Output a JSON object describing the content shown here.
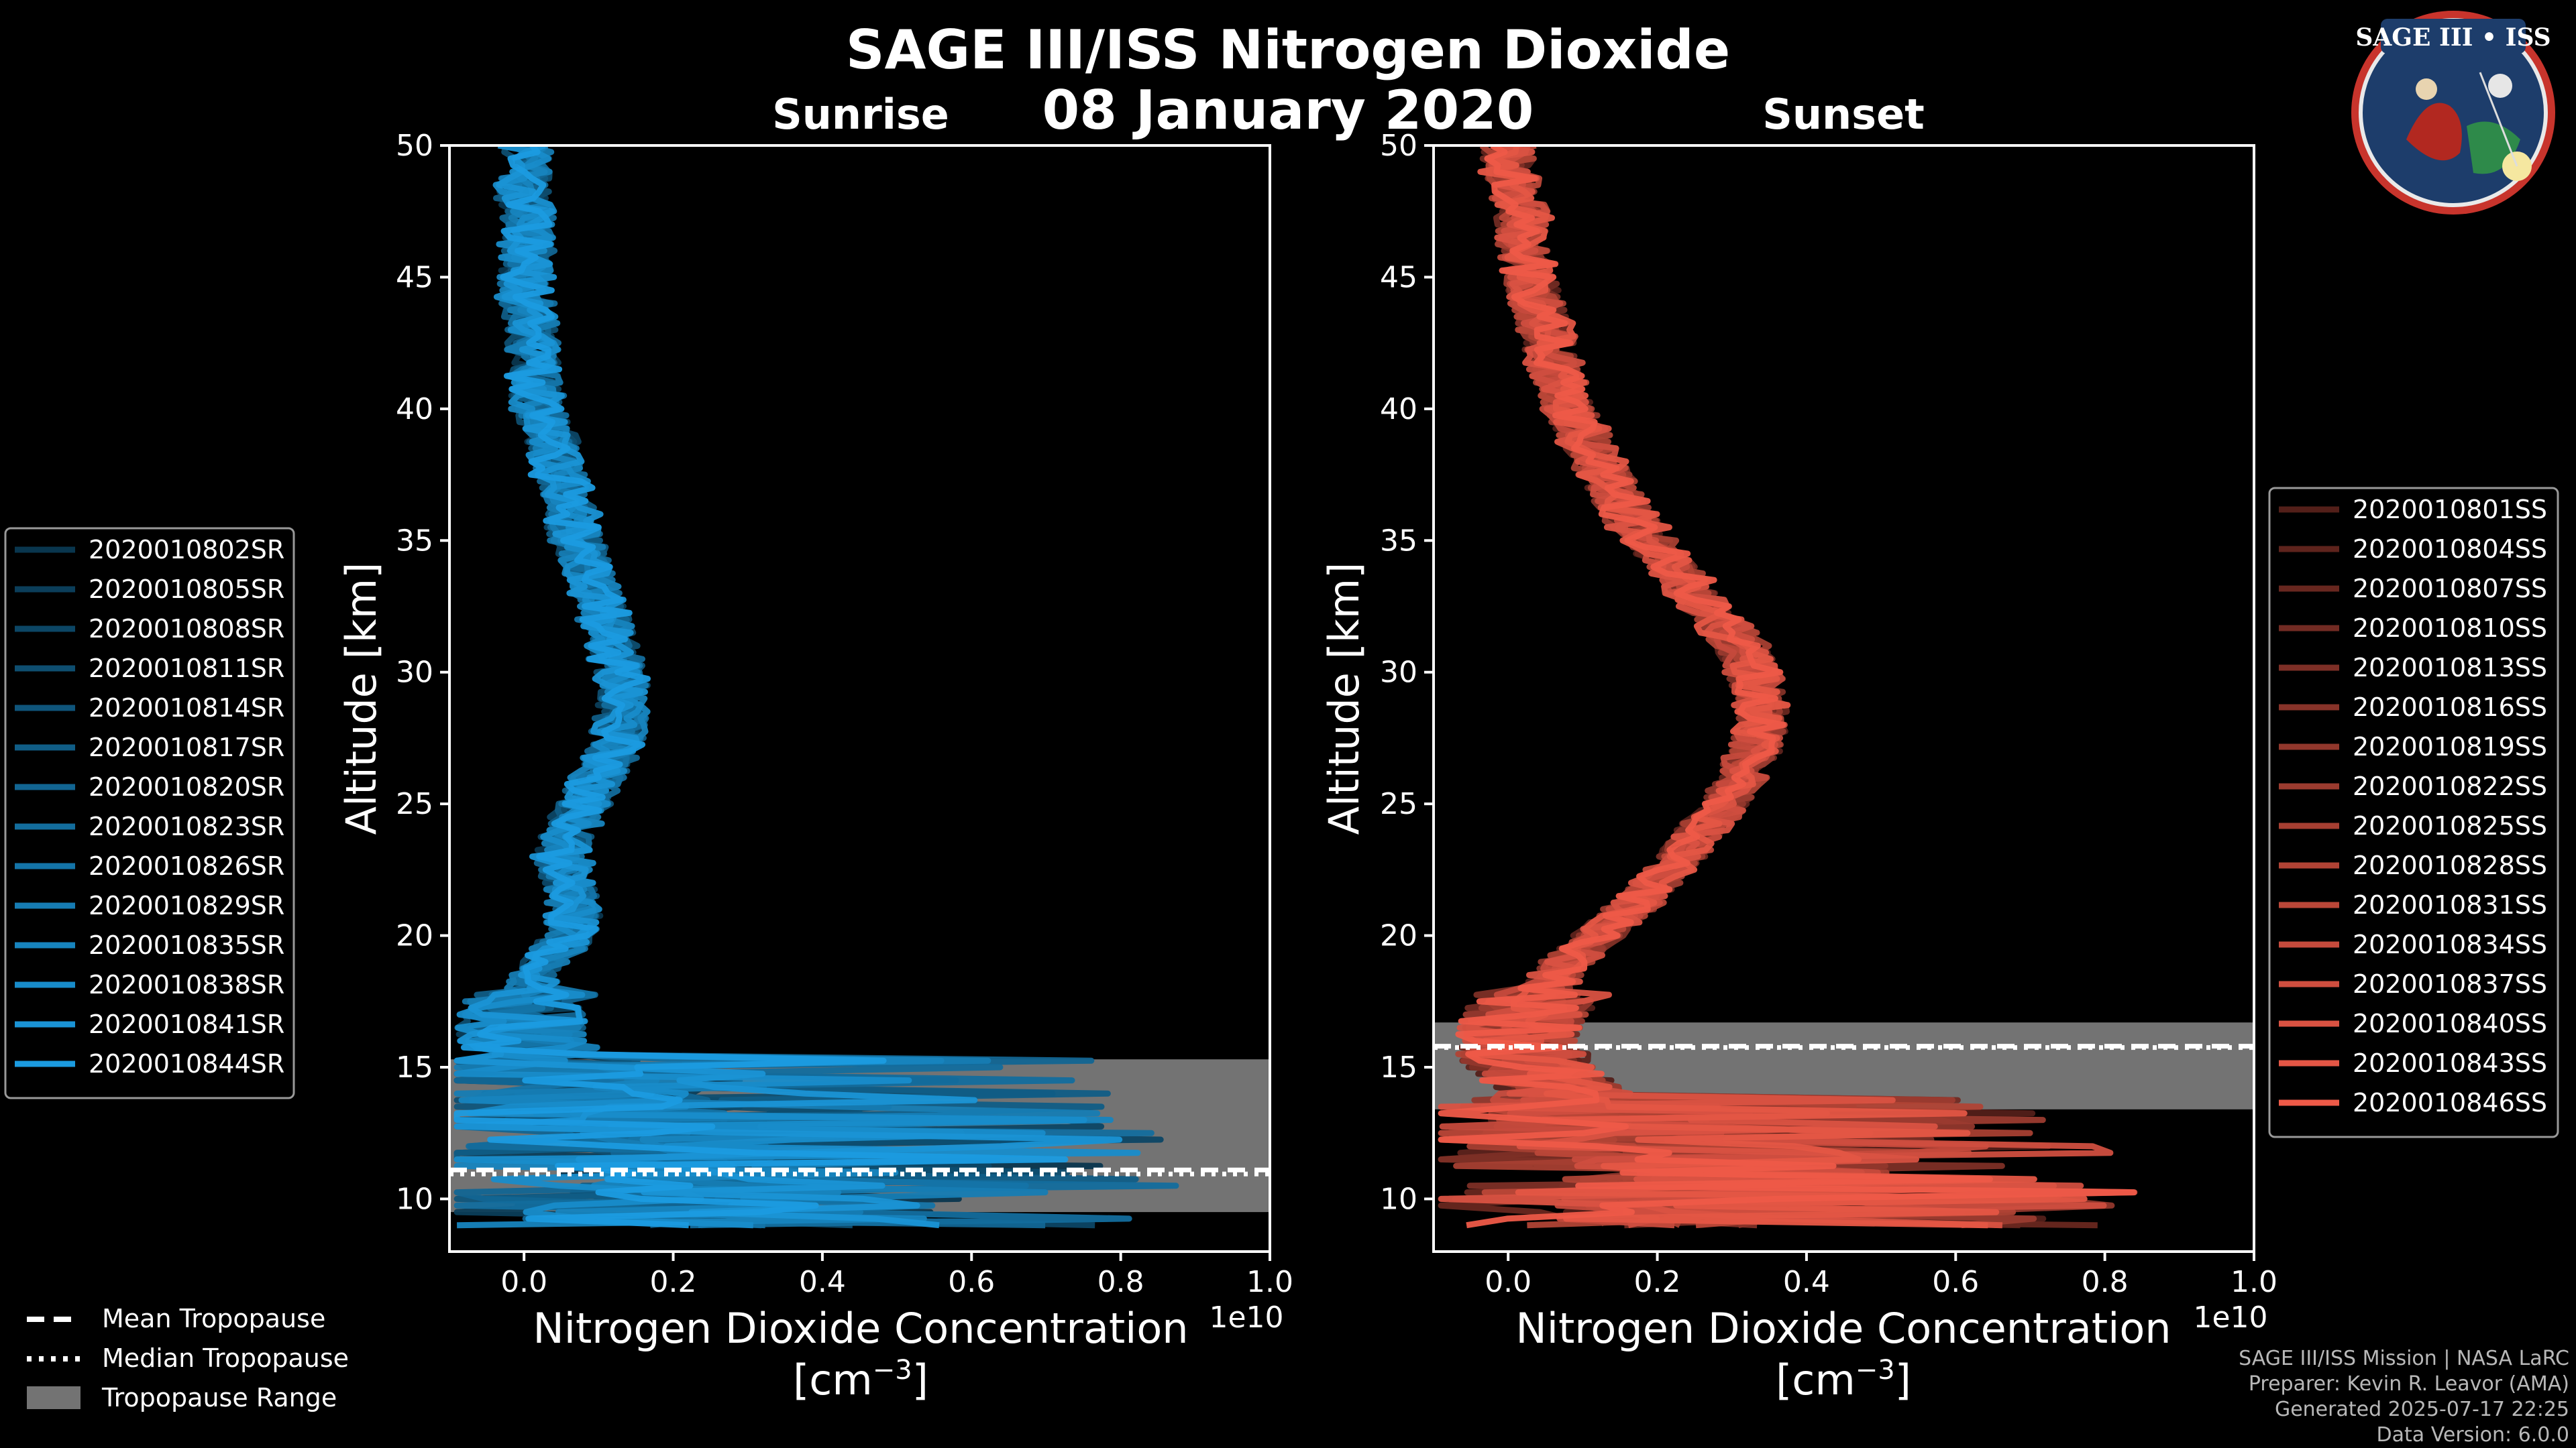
{
  "title_line1": "SAGE III/ISS Nitrogen Dioxide",
  "title_line2": "08 January 2020",
  "logo_text": "SAGE III • ISS",
  "colors": {
    "sunrise": "#1b9be0",
    "sunset": "#ee5a48",
    "tropopause_fill": "#737373",
    "background": "#000000"
  },
  "legend_bottom": [
    {
      "label": "Mean Tropopause",
      "style": "dashed"
    },
    {
      "label": "Median Tropopause",
      "style": "dotted"
    },
    {
      "label": "Tropopause Range",
      "style": "patch"
    }
  ],
  "credits": [
    "SAGE III/ISS Mission | NASA LaRC",
    "Preparer: Kevin R. Leavor (AMA)",
    "Generated 2025-07-17 22:25",
    "Data Version: 6.0.0"
  ],
  "chart_data": [
    {
      "type": "line",
      "title": "Sunrise",
      "xlabel": "Nitrogen Dioxide Concentration",
      "xlabel_units": "[cm$^{-3}$]",
      "x_offset_label": "1e10",
      "ylabel": "Altitude [km]",
      "xlim": [
        -0.1,
        1.0
      ],
      "ylim": [
        8,
        50
      ],
      "x_unit_scale": "1e10 cm^-3",
      "xticks": [
        "0.0",
        "0.2",
        "0.4",
        "0.6",
        "0.8",
        "1.0"
      ],
      "yticks": [
        "10",
        "15",
        "20",
        "25",
        "30",
        "35",
        "40",
        "45",
        "50"
      ],
      "legend_position": "left",
      "tropopause": {
        "range": [
          9.5,
          15.3
        ],
        "mean": 11.1,
        "median": 11.1
      },
      "profile": {
        "altitude": [
          9,
          10,
          11,
          12,
          13,
          14,
          15,
          16,
          17,
          18,
          19,
          20,
          21,
          22,
          23,
          24,
          25,
          26,
          27,
          28,
          29,
          30,
          31,
          32,
          33,
          34,
          35,
          36,
          37,
          38,
          39,
          40,
          41,
          42,
          43,
          44,
          45,
          46,
          47,
          48,
          49,
          50
        ],
        "mean_no2": [
          0.4,
          0.45,
          0.5,
          0.42,
          0.3,
          0.15,
          0.05,
          0.0,
          0.0,
          0.01,
          0.03,
          0.06,
          0.07,
          0.06,
          0.05,
          0.06,
          0.08,
          0.1,
          0.12,
          0.13,
          0.135,
          0.13,
          0.12,
          0.11,
          0.1,
          0.085,
          0.07,
          0.06,
          0.055,
          0.045,
          0.035,
          0.02,
          0.015,
          0.01,
          0.01,
          0.005,
          0.0,
          0.005,
          0.005,
          0.0,
          0.0,
          0.0
        ]
      },
      "series": [
        {
          "name": "2020010802SR"
        },
        {
          "name": "2020010805SR"
        },
        {
          "name": "2020010808SR"
        },
        {
          "name": "2020010811SR"
        },
        {
          "name": "2020010814SR"
        },
        {
          "name": "2020010817SR"
        },
        {
          "name": "2020010820SR"
        },
        {
          "name": "2020010823SR"
        },
        {
          "name": "2020010826SR"
        },
        {
          "name": "2020010829SR"
        },
        {
          "name": "2020010835SR"
        },
        {
          "name": "2020010838SR"
        },
        {
          "name": "2020010841SR"
        },
        {
          "name": "2020010844SR"
        }
      ]
    },
    {
      "type": "line",
      "title": "Sunset",
      "xlabel": "Nitrogen Dioxide Concentration",
      "xlabel_units": "[cm$^{-3}$]",
      "x_offset_label": "1e10",
      "ylabel": "Altitude [km]",
      "xlim": [
        -0.1,
        1.0
      ],
      "ylim": [
        8,
        50
      ],
      "x_unit_scale": "1e10 cm^-3",
      "xticks": [
        "0.0",
        "0.2",
        "0.4",
        "0.6",
        "0.8",
        "1.0"
      ],
      "yticks": [
        "10",
        "15",
        "20",
        "25",
        "30",
        "35",
        "40",
        "45",
        "50"
      ],
      "legend_position": "right",
      "tropopause": {
        "range": [
          13.4,
          16.7
        ],
        "mean": 15.8,
        "median": 15.9
      },
      "profile": {
        "altitude": [
          9,
          10,
          11,
          12,
          13,
          14,
          15,
          16,
          17,
          18,
          19,
          20,
          21,
          22,
          23,
          24,
          25,
          26,
          27,
          28,
          29,
          30,
          31,
          32,
          33,
          34,
          35,
          36,
          37,
          38,
          39,
          40,
          41,
          42,
          43,
          44,
          45,
          46,
          47,
          48,
          49,
          50
        ],
        "mean_no2": [
          0.5,
          0.55,
          0.5,
          0.35,
          0.2,
          0.08,
          0.03,
          0.02,
          0.03,
          0.05,
          0.08,
          0.12,
          0.16,
          0.2,
          0.23,
          0.26,
          0.29,
          0.31,
          0.33,
          0.34,
          0.34,
          0.33,
          0.31,
          0.28,
          0.25,
          0.22,
          0.19,
          0.16,
          0.14,
          0.12,
          0.1,
          0.08,
          0.07,
          0.06,
          0.05,
          0.04,
          0.03,
          0.02,
          0.02,
          0.01,
          0.0,
          0.0
        ]
      },
      "series": [
        {
          "name": "2020010801SS"
        },
        {
          "name": "2020010804SS"
        },
        {
          "name": "2020010807SS"
        },
        {
          "name": "2020010810SS"
        },
        {
          "name": "2020010813SS"
        },
        {
          "name": "2020010816SS"
        },
        {
          "name": "2020010819SS"
        },
        {
          "name": "2020010822SS"
        },
        {
          "name": "2020010825SS"
        },
        {
          "name": "2020010828SS"
        },
        {
          "name": "2020010831SS"
        },
        {
          "name": "2020010834SS"
        },
        {
          "name": "2020010837SS"
        },
        {
          "name": "2020010840SS"
        },
        {
          "name": "2020010843SS"
        },
        {
          "name": "2020010846SS"
        }
      ]
    }
  ]
}
